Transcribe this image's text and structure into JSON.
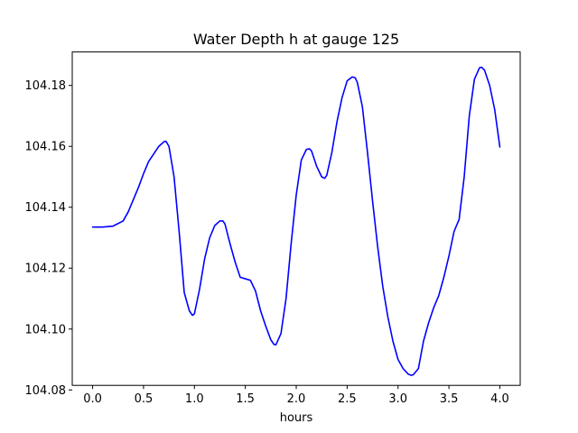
{
  "chart_data": {
    "type": "line",
    "title": "Water Depth h at gauge 125",
    "xlabel": "hours",
    "ylabel": "",
    "xlim": [
      -0.2,
      4.2
    ],
    "ylim": [
      104.0815,
      104.191
    ],
    "xticks": [
      0.0,
      0.5,
      1.0,
      1.5,
      2.0,
      2.5,
      3.0,
      3.5,
      4.0
    ],
    "xtick_labels": [
      "0.0",
      "0.5",
      "1.0",
      "1.5",
      "2.0",
      "2.5",
      "3.0",
      "3.5",
      "4.0"
    ],
    "yticks": [
      104.08,
      104.1,
      104.12,
      104.14,
      104.16,
      104.18
    ],
    "ytick_labels": [
      "104.08",
      "104.10",
      "104.12",
      "104.14",
      "104.16",
      "104.18"
    ],
    "grid": false,
    "legend": "none",
    "series": [
      {
        "color": "#0000ff",
        "x": [
          0.0,
          0.1,
          0.2,
          0.3,
          0.35,
          0.4,
          0.45,
          0.5,
          0.55,
          0.6,
          0.65,
          0.7,
          0.72,
          0.75,
          0.8,
          0.85,
          0.9,
          0.95,
          0.98,
          1.0,
          1.05,
          1.1,
          1.15,
          1.2,
          1.25,
          1.28,
          1.3,
          1.35,
          1.4,
          1.45,
          1.5,
          1.55,
          1.6,
          1.65,
          1.7,
          1.75,
          1.78,
          1.8,
          1.85,
          1.9,
          1.95,
          2.0,
          2.05,
          2.1,
          2.13,
          2.15,
          2.2,
          2.25,
          2.28,
          2.3,
          2.35,
          2.4,
          2.45,
          2.5,
          2.55,
          2.58,
          2.6,
          2.65,
          2.7,
          2.75,
          2.8,
          2.85,
          2.9,
          2.95,
          3.0,
          3.05,
          3.1,
          3.13,
          3.15,
          3.2,
          3.25,
          3.3,
          3.35,
          3.4,
          3.45,
          3.5,
          3.55,
          3.6,
          3.65,
          3.7,
          3.75,
          3.8,
          3.82,
          3.85,
          3.9,
          3.95,
          4.0
        ],
        "y": [
          104.1335,
          104.1335,
          104.1338,
          104.1355,
          104.1385,
          104.1425,
          104.1465,
          104.151,
          104.155,
          104.1575,
          104.16,
          104.1615,
          104.1617,
          104.16,
          104.15,
          104.132,
          104.112,
          104.106,
          104.1045,
          104.105,
          104.113,
          104.123,
          104.13,
          104.134,
          104.1355,
          104.1355,
          104.1345,
          104.128,
          104.122,
          104.117,
          104.1165,
          104.116,
          104.1125,
          104.106,
          104.101,
          104.0965,
          104.095,
          104.0948,
          104.0985,
          104.11,
          104.128,
          104.144,
          104.1555,
          104.159,
          104.1592,
          104.1585,
          104.1535,
          104.15,
          104.1495,
          104.1505,
          104.158,
          104.168,
          104.176,
          104.1815,
          104.1828,
          104.1825,
          104.181,
          104.173,
          104.158,
          104.142,
          104.127,
          104.114,
          104.104,
          104.096,
          104.09,
          104.087,
          104.0852,
          104.0848,
          104.085,
          104.087,
          104.096,
          104.102,
          104.107,
          104.111,
          104.117,
          104.124,
          104.132,
          104.136,
          104.15,
          104.17,
          104.182,
          104.1858,
          104.186,
          104.185,
          104.18,
          104.172,
          104.1598
        ]
      }
    ]
  }
}
